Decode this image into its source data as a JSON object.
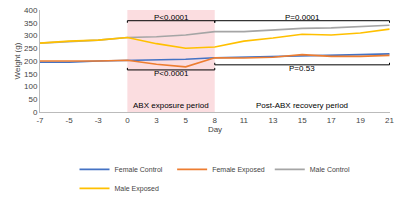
{
  "chart_data": {
    "type": "line",
    "x_label": "Day",
    "y_label": "Weight (g)",
    "categories": [
      "-7",
      "-5",
      "-3",
      "0",
      "3",
      "5",
      "8",
      "11",
      "13",
      "15",
      "17",
      "19",
      "21"
    ],
    "series": [
      {
        "name": "Female Control",
        "color": "#4472c4",
        "values": [
          195,
          195,
          200,
          203,
          205,
          207,
          213,
          215,
          218,
          220,
          222,
          225,
          228
        ]
      },
      {
        "name": "Female Exposed",
        "color": "#ed7d31",
        "values": [
          200,
          200,
          200,
          203,
          187,
          177,
          213,
          212,
          215,
          225,
          218,
          218,
          222
        ]
      },
      {
        "name": "Male Control",
        "color": "#a5a5a5",
        "values": [
          270,
          275,
          282,
          292,
          295,
          302,
          315,
          315,
          322,
          328,
          330,
          335,
          340
        ]
      },
      {
        "name": "Male Exposed",
        "color": "#ffc000",
        "values": [
          270,
          278,
          282,
          292,
          268,
          250,
          255,
          278,
          290,
          305,
          302,
          310,
          325
        ]
      }
    ],
    "ylim": [
      0,
      400
    ],
    "yticks": [
      0,
      50,
      100,
      150,
      200,
      250,
      300,
      350,
      400
    ],
    "grid": false,
    "legend": "bottom",
    "shaded_regions": [
      {
        "from": "0",
        "to": "8",
        "color": "#f9c6cc"
      }
    ],
    "annotations": [
      {
        "text": "P<0.0001",
        "from": "0",
        "to": "8",
        "y": 372,
        "bracket_y": 358
      },
      {
        "text": "P=0.0001",
        "from": "8",
        "to": "21",
        "y": 372,
        "bracket_y": 358
      },
      {
        "text": "P<0.0001",
        "from": "0",
        "to": "8",
        "y": 150,
        "bracket_y": 165
      },
      {
        "text": "P=0.53",
        "from": "8",
        "to": "21",
        "y": 170,
        "bracket_y": 185
      },
      {
        "text": "ABX exposure period",
        "from": "0",
        "to": "8",
        "y": 25
      },
      {
        "text": "Post-ABX recovery period",
        "from": "8",
        "to": "21",
        "y": 25
      }
    ]
  }
}
